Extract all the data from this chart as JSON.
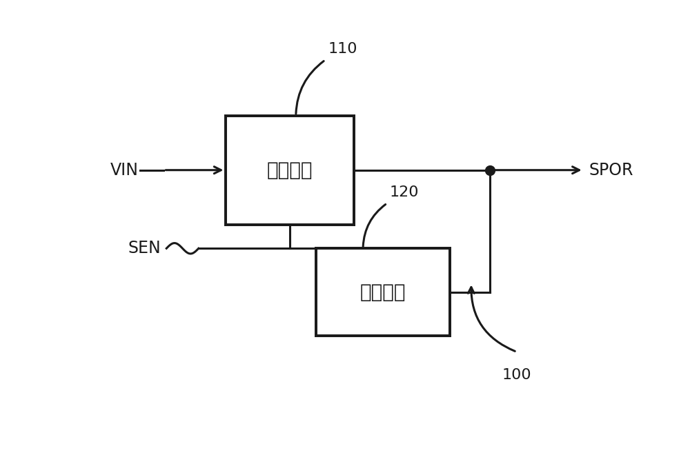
{
  "bg_color": "#ffffff",
  "box1_label": "检测电路",
  "box2_label": "控制电路",
  "label_VIN": "VIN",
  "label_SPOR": "SPOR",
  "label_SEN": "SEN",
  "label_100": "100",
  "label_110": "110",
  "label_120": "120",
  "line_color": "#1a1a1a",
  "box_edge_color": "#1a1a1a",
  "text_color": "#1a1a1a",
  "font_size_box": 20,
  "font_size_label": 17,
  "font_size_ref": 16,
  "lw": 2.2
}
